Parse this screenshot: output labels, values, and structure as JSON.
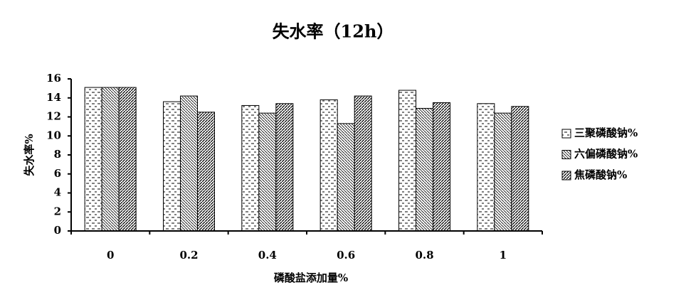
{
  "chart_data": {
    "type": "bar",
    "title": "失水率（12h）",
    "x_label": "磷酸盐添加量%",
    "y_label": "失水率%",
    "categories": [
      "0",
      "0.2",
      "0.4",
      "0.6",
      "0.8",
      "1"
    ],
    "series": [
      {
        "name": "三聚磷酸钠%",
        "color": "#000000",
        "pattern": "dash",
        "values": [
          15.1,
          13.6,
          13.2,
          13.8,
          14.8,
          13.4
        ]
      },
      {
        "name": "六偏磷酸钠%",
        "color": "#000000",
        "pattern": "backslash",
        "values": [
          15.1,
          14.2,
          12.4,
          11.3,
          12.9,
          12.4
        ]
      },
      {
        "name": "焦磷酸钠%",
        "color": "#000000",
        "pattern": "slash",
        "values": [
          15.1,
          12.5,
          13.4,
          14.2,
          13.5,
          13.1
        ]
      }
    ],
    "ylim": [
      0,
      16
    ],
    "yticks": [
      0,
      2,
      4,
      6,
      8,
      10,
      12,
      14,
      16
    ],
    "grid": false,
    "legend": "right"
  }
}
